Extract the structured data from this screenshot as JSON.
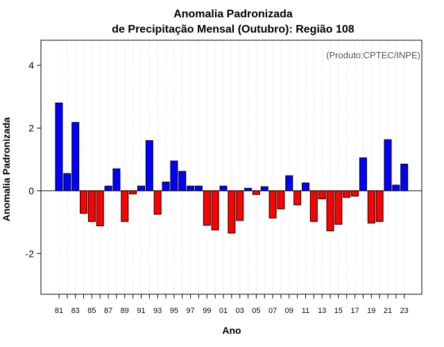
{
  "chart_data": {
    "type": "bar",
    "title": "Anomalia Padronizada",
    "subtitle": "de Precipitação Mensal (Outubro): Região 108",
    "xlabel": "Ano",
    "ylabel": "Anomalia Padronizada",
    "credit": "(Produto:CPTEC/INPE)",
    "ylim": [
      -3.3,
      4.8
    ],
    "yticks": [
      -2,
      0,
      2,
      4
    ],
    "ytick_labels": [
      "-2",
      "0",
      "2",
      "4"
    ],
    "xtick_labels": [
      "81",
      "83",
      "85",
      "87",
      "89",
      "91",
      "93",
      "95",
      "97",
      "99",
      "01",
      "03",
      "05",
      "07",
      "09",
      "11",
      "13",
      "15",
      "17",
      "19",
      "21",
      "23"
    ],
    "positive_color": "#0000ff",
    "negative_color": "#ff0000",
    "categories": [
      "1981",
      "1982",
      "1983",
      "1984",
      "1985",
      "1986",
      "1987",
      "1988",
      "1989",
      "1990",
      "1991",
      "1992",
      "1993",
      "1994",
      "1995",
      "1996",
      "1997",
      "1998",
      "1999",
      "2000",
      "2001",
      "2002",
      "2003",
      "2004",
      "2005",
      "2006",
      "2007",
      "2008",
      "2009",
      "2010",
      "2011",
      "2012",
      "2013",
      "2014",
      "2015",
      "2016",
      "2017",
      "2018",
      "2019",
      "2020",
      "2021",
      "2022",
      "2023"
    ],
    "values": [
      2.8,
      0.55,
      2.18,
      -0.72,
      -0.98,
      -1.12,
      0.15,
      0.7,
      -0.98,
      -0.1,
      0.15,
      1.6,
      -0.75,
      0.28,
      0.95,
      0.62,
      0.15,
      0.15,
      -1.1,
      -1.25,
      0.15,
      -1.35,
      -0.95,
      0.08,
      -0.12,
      0.13,
      -0.87,
      -0.58,
      0.48,
      -0.45,
      0.25,
      -0.98,
      -0.26,
      -1.28,
      -1.07,
      -0.21,
      -0.17,
      1.05,
      -1.03,
      -0.98,
      1.63,
      0.18,
      0.85
    ],
    "grid": "vertical dotted"
  }
}
